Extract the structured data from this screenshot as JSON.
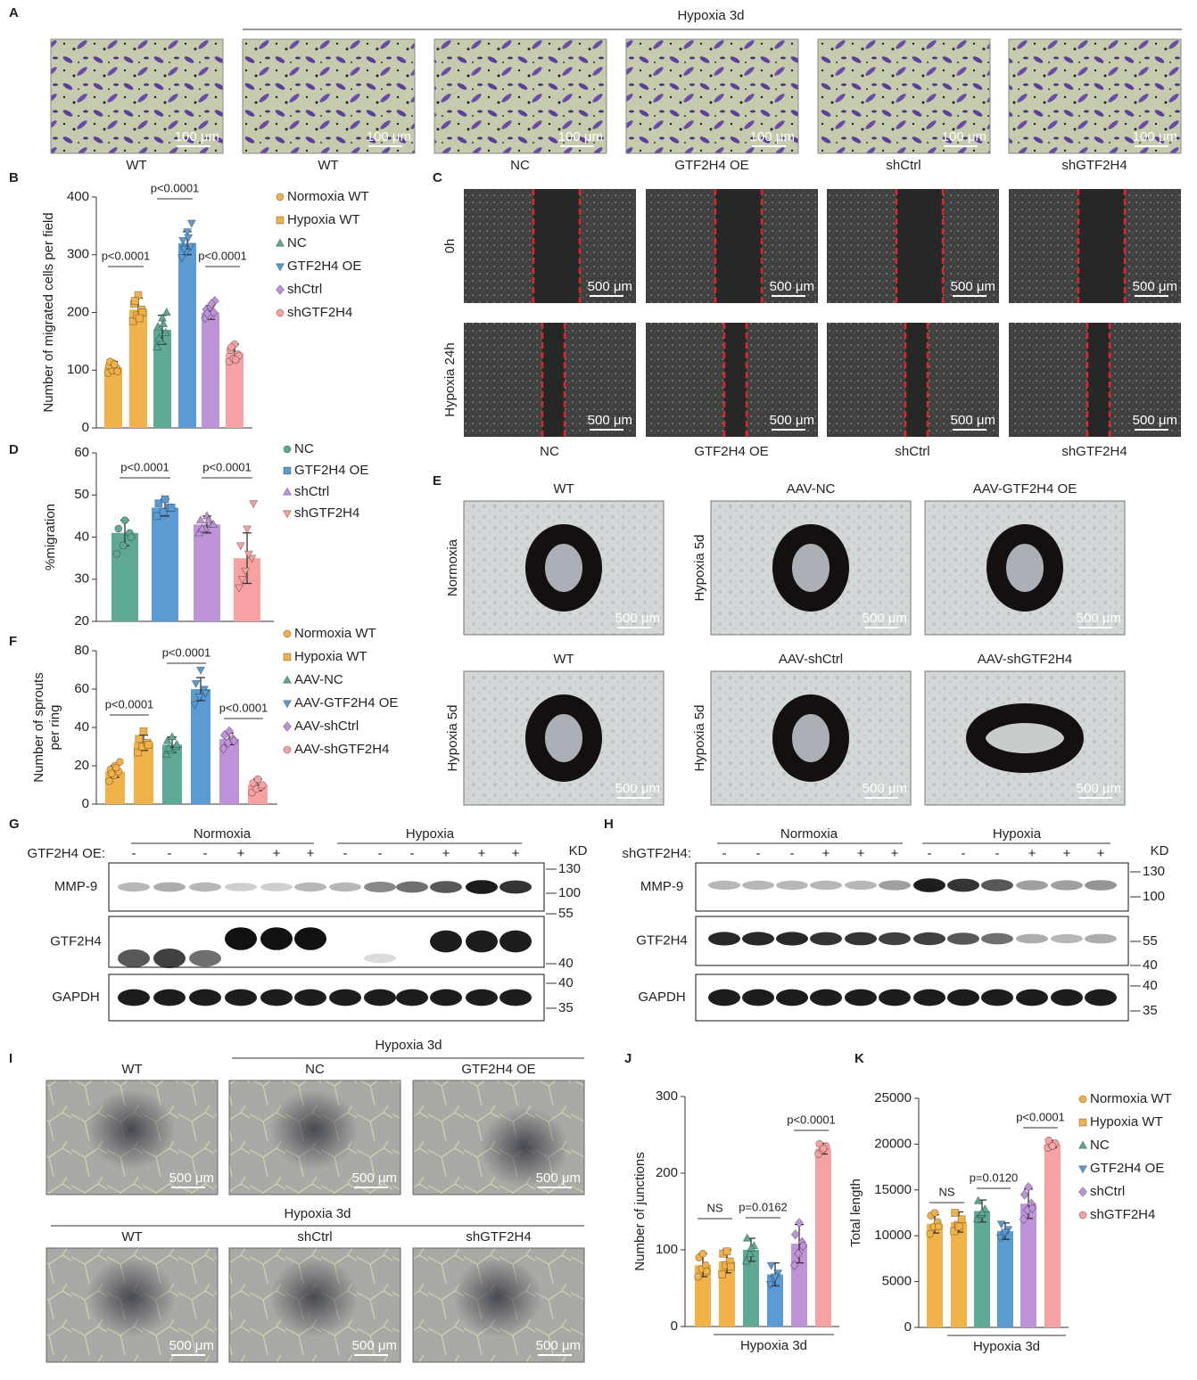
{
  "panel_labels": [
    "A",
    "B",
    "C",
    "D",
    "E",
    "F",
    "G",
    "H",
    "I",
    "J",
    "K"
  ],
  "panel_a": {
    "group_label": "Hypoxia 3d",
    "scale_bar": "100 μm",
    "images": [
      "WT",
      "WT",
      "NC",
      "GTF2H4 OE",
      "shCtrl",
      "shGTF2H4"
    ]
  },
  "panel_c": {
    "rows": [
      "0h",
      "Hypoxia 24h"
    ],
    "columns": [
      "NC",
      "GTF2H4 OE",
      "shCtrl",
      "shGTF2H4"
    ],
    "scale_bar": "500 μm"
  },
  "panel_e": {
    "scale_bar": "500 μm",
    "images": [
      {
        "title": "WT",
        "condition": "Normoxia"
      },
      {
        "title": "AAV-NC",
        "condition": "Hypoxia 5d"
      },
      {
        "title": "AAV-GTF2H4 OE"
      },
      {
        "title": "WT",
        "condition": "Hypoxia 5d"
      },
      {
        "title": "AAV-shCtrl",
        "condition": "Hypoxia 5d"
      },
      {
        "title": "AAV-shGTF2H4"
      }
    ]
  },
  "panel_g": {
    "groups": [
      "Normoxia",
      "Hypoxia"
    ],
    "treatment_label": "GTF2H4 OE:",
    "lanes": [
      "-",
      "-",
      "-",
      "+",
      "+",
      "+",
      "-",
      "-",
      "-",
      "+",
      "+",
      "+"
    ],
    "unit": "KD",
    "blots": [
      {
        "name": "MMP-9",
        "markers": [
          130,
          100
        ]
      },
      {
        "name": "GTF2H4",
        "markers": [
          55,
          40
        ]
      },
      {
        "name": "GAPDH",
        "markers": [
          40,
          35
        ]
      }
    ]
  },
  "panel_h": {
    "groups": [
      "Normoxia",
      "Hypoxia"
    ],
    "treatment_label": "shGTF2H4:",
    "lanes": [
      "-",
      "-",
      "-",
      "+",
      "+",
      "+",
      "-",
      "-",
      "-",
      "+",
      "+",
      "+"
    ],
    "unit": "KD",
    "blots": [
      {
        "name": "MMP-9",
        "markers": [
          130,
          100
        ]
      },
      {
        "name": "GTF2H4",
        "markers": [
          55,
          40
        ]
      },
      {
        "name": "GAPDH",
        "markers": [
          40,
          35
        ]
      }
    ]
  },
  "panel_i": {
    "groups": [
      "Hypoxia 3d",
      "Hypoxia 3d"
    ],
    "scale_bar": "500 μm",
    "images": [
      "WT",
      "NC",
      "GTF2H4 OE",
      "WT",
      "shCtrl",
      "shGTF2H4"
    ]
  },
  "chart_data": [
    {
      "type": "bar",
      "ylabel": "Number of migrated cells per field",
      "ylim": [
        0,
        400
      ],
      "yticks": [
        0,
        100,
        200,
        300,
        400
      ],
      "legend": true,
      "annotations": [
        "p<0.0001",
        "p<0.0001",
        "p<0.0001"
      ],
      "series": [
        {
          "name": "Normoxia WT",
          "color": "#f2b24a",
          "marker": "circle",
          "values": [
            105
          ],
          "errors": [
            10
          ],
          "points": [
            95,
            100,
            104,
            108,
            112,
            98,
            115,
            110
          ]
        },
        {
          "name": "Hypoxia WT",
          "color": "#f2b24a",
          "marker": "square",
          "values": [
            205
          ],
          "errors": [
            20
          ],
          "points": [
            185,
            195,
            205,
            215,
            230,
            200,
            220,
            190
          ]
        },
        {
          "name": "NC",
          "color": "#5fa895",
          "marker": "triangle-up",
          "values": [
            170
          ],
          "errors": [
            25
          ],
          "points": [
            140,
            150,
            165,
            175,
            190,
            200,
            155,
            180
          ]
        },
        {
          "name": "GTF2H4 OE",
          "color": "#5b9bd3",
          "marker": "triangle-down",
          "values": [
            320
          ],
          "errors": [
            20
          ],
          "points": [
            295,
            305,
            315,
            325,
            340,
            355,
            310,
            330
          ]
        },
        {
          "name": "shCtrl",
          "color": "#bf93d8",
          "marker": "diamond",
          "values": [
            200
          ],
          "errors": [
            12
          ],
          "points": [
            190,
            195,
            200,
            205,
            210,
            220,
            198,
            215
          ]
        },
        {
          "name": "shGTF2H4",
          "color": "#f6a2a2",
          "marker": "circle",
          "values": [
            130
          ],
          "errors": [
            15
          ],
          "points": [
            115,
            120,
            128,
            135,
            145,
            125,
            140,
            118
          ]
        }
      ]
    },
    {
      "type": "bar",
      "ylabel": "%migration",
      "ylim": [
        20,
        60
      ],
      "yticks": [
        20,
        30,
        40,
        50,
        60
      ],
      "legend": true,
      "annotations": [
        "p<0.0001",
        "p<0.0001"
      ],
      "series": [
        {
          "name": "NC",
          "color": "#5fa895",
          "marker": "circle",
          "values": [
            41
          ],
          "errors": [
            3
          ],
          "points": [
            36,
            38,
            41,
            42,
            44,
            40
          ]
        },
        {
          "name": "GTF2H4 OE",
          "color": "#5b9bd3",
          "marker": "square",
          "values": [
            47
          ],
          "errors": [
            2
          ],
          "points": [
            45,
            46,
            47,
            48,
            49,
            47
          ]
        },
        {
          "name": "shCtrl",
          "color": "#bf93d8",
          "marker": "triangle-up",
          "values": [
            43
          ],
          "errors": [
            2
          ],
          "points": [
            41,
            42,
            43,
            44,
            45,
            43,
            42,
            44
          ]
        },
        {
          "name": "shGTF2H4",
          "color": "#f6a2a2",
          "marker": "triangle-down",
          "values": [
            35
          ],
          "errors": [
            6
          ],
          "points": [
            28,
            32,
            35,
            38,
            42,
            48,
            30,
            36
          ]
        }
      ]
    },
    {
      "type": "bar",
      "ylabel": [
        "Number of sprouts",
        "per ring"
      ],
      "ylim": [
        0,
        80
      ],
      "yticks": [
        0,
        20,
        40,
        60,
        80
      ],
      "legend": true,
      "annotations": [
        "p<0.0001",
        "p<0.0001",
        "p<0.0001"
      ],
      "series": [
        {
          "name": "Normoxia WT",
          "color": "#f2b24a",
          "marker": "circle",
          "values": [
            17
          ],
          "errors": [
            3
          ],
          "points": [
            12,
            15,
            17,
            18,
            20,
            22,
            16,
            19
          ]
        },
        {
          "name": "Hypoxia WT",
          "color": "#f2b24a",
          "marker": "square",
          "values": [
            32
          ],
          "errors": [
            4
          ],
          "points": [
            27,
            30,
            32,
            34,
            38,
            31
          ]
        },
        {
          "name": "AAV-NC",
          "color": "#5fa895",
          "marker": "triangle-up",
          "values": [
            31
          ],
          "errors": [
            4
          ],
          "points": [
            26,
            28,
            30,
            33,
            35,
            31,
            29
          ]
        },
        {
          "name": "AAV-GTF2H4 OE",
          "color": "#5b9bd3",
          "marker": "triangle-down",
          "values": [
            60
          ],
          "errors": [
            6
          ],
          "points": [
            52,
            56,
            60,
            63,
            70,
            58
          ]
        },
        {
          "name": "AAV-shCtrl",
          "color": "#bf93d8",
          "marker": "diamond",
          "values": [
            34
          ],
          "errors": [
            3
          ],
          "points": [
            29,
            32,
            34,
            36,
            38,
            33
          ]
        },
        {
          "name": "AAV-shGTF2H4",
          "color": "#f6a2a2",
          "marker": "circle",
          "values": [
            10
          ],
          "errors": [
            3
          ],
          "points": [
            6,
            8,
            9,
            11,
            13,
            10
          ]
        }
      ]
    },
    {
      "type": "bar",
      "ylabel": "Number of junctions",
      "ylim": [
        0,
        300
      ],
      "yticks": [
        0,
        100,
        200,
        300
      ],
      "legend": false,
      "group_label": "Hypoxia 3d",
      "annotations": [
        "NS",
        "p=0.0162",
        "p<0.0001"
      ],
      "series": [
        {
          "name": "Normoxia WT",
          "color": "#f2b24a",
          "marker": "circle",
          "values": [
            80
          ],
          "errors": [
            15
          ],
          "points": [
            65,
            75,
            80,
            90,
            95,
            72
          ]
        },
        {
          "name": "Hypoxia WT",
          "color": "#f2b24a",
          "marker": "square",
          "values": [
            85
          ],
          "errors": [
            15
          ],
          "points": [
            68,
            80,
            85,
            95,
            98,
            78
          ]
        },
        {
          "name": "NC",
          "color": "#5fa895",
          "marker": "triangle-up",
          "values": [
            100
          ],
          "errors": [
            15
          ],
          "points": [
            85,
            95,
            105,
            115,
            102
          ]
        },
        {
          "name": "GTF2H4 OE",
          "color": "#5b9bd3",
          "marker": "triangle-down",
          "values": [
            68
          ],
          "errors": [
            15
          ],
          "points": [
            55,
            62,
            70,
            80,
            65
          ]
        },
        {
          "name": "shCtrl",
          "color": "#bf93d8",
          "marker": "diamond",
          "values": [
            108
          ],
          "errors": [
            25
          ],
          "points": [
            80,
            95,
            110,
            120,
            135,
            105
          ]
        },
        {
          "name": "shGTF2H4",
          "color": "#f6a2a2",
          "marker": "circle",
          "values": [
            232
          ],
          "errors": [
            7
          ],
          "points": [
            225,
            230,
            235,
            238,
            232
          ]
        }
      ]
    },
    {
      "type": "bar",
      "ylabel": "Total length",
      "ylim": [
        0,
        25000
      ],
      "yticks": [
        0,
        5000,
        10000,
        15000,
        20000,
        25000
      ],
      "legend": true,
      "group_label": "Hypoxia 3d",
      "annotations": [
        "NS",
        "p=0.0120",
        "p<0.0001"
      ],
      "series": [
        {
          "name": "Normoxia WT",
          "color": "#f2b24a",
          "marker": "circle",
          "values": [
            11300
          ],
          "errors": [
            1000
          ],
          "points": [
            10200,
            11000,
            11500,
            12200,
            12500,
            11000
          ]
        },
        {
          "name": "Hypoxia WT",
          "color": "#f2b24a",
          "marker": "square",
          "values": [
            11500
          ],
          "errors": [
            1100
          ],
          "points": [
            10500,
            11200,
            11800,
            12500,
            11000
          ]
        },
        {
          "name": "NC",
          "color": "#5fa895",
          "marker": "triangle-up",
          "values": [
            12700
          ],
          "errors": [
            1200
          ],
          "points": [
            11800,
            12300,
            12900,
            13800,
            12500
          ]
        },
        {
          "name": "GTF2H4 OE",
          "color": "#5b9bd3",
          "marker": "triangle-down",
          "values": [
            10500
          ],
          "errors": [
            900
          ],
          "points": [
            9800,
            10200,
            10700,
            11300,
            10400
          ]
        },
        {
          "name": "shCtrl",
          "color": "#bf93d8",
          "marker": "diamond",
          "values": [
            13500
          ],
          "errors": [
            1600
          ],
          "points": [
            11800,
            12800,
            13500,
            14500,
            15300,
            13000
          ]
        },
        {
          "name": "shGTF2H4",
          "color": "#f6a2a2",
          "marker": "circle",
          "values": [
            20000
          ],
          "errors": [
            400
          ],
          "points": [
            19600,
            19900,
            20100,
            20400,
            19800
          ]
        }
      ]
    }
  ]
}
